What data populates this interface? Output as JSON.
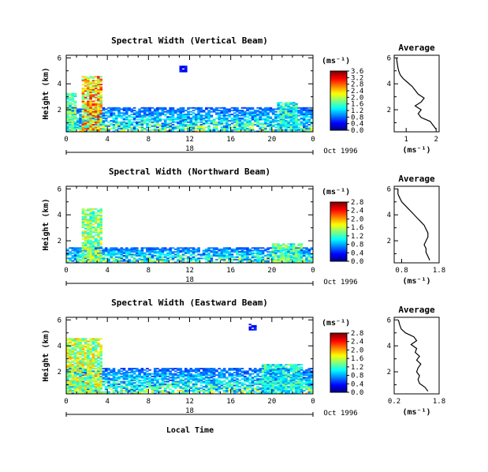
{
  "figure": {
    "xlabel": "Local Time",
    "date_label": "Oct 1996",
    "panel_ylabel": "Height (km)",
    "colorbar_unit": "(ms⁻¹)",
    "profile_title": "Average",
    "profile_xlabel": "(ms⁻¹)",
    "day_label": "18"
  },
  "chart_data": [
    {
      "type": "heatmap",
      "title": "Spectral Width (Vertical Beam)",
      "ylabel": "Height (km)",
      "xlabel": "",
      "x_ticks": [
        "0",
        "4",
        "8",
        "12",
        "16",
        "20",
        "0"
      ],
      "y_ticks": [
        "2",
        "4",
        "6"
      ],
      "xlim": [
        0,
        24
      ],
      "ylim": [
        0.3,
        6.2
      ],
      "colorbar": {
        "label": "(ms⁻¹)",
        "ticks": [
          "0.0",
          "0.4",
          "0.8",
          "1.2",
          "1.6",
          "2.0",
          "2.4",
          "2.8",
          "3.2",
          "3.6"
        ],
        "range": [
          0,
          3.6
        ]
      },
      "profile": {
        "title": "Average",
        "xlabel": "(ms⁻¹)",
        "x_ticks": [
          "1",
          "2"
        ],
        "xlim": [
          0.6,
          2.1
        ],
        "y_ticks": [
          "2",
          "4",
          "6"
        ],
        "ylim": [
          0.3,
          6.2
        ],
        "height": [
          0.5,
          0.8,
          1.1,
          1.4,
          1.7,
          2.0,
          2.3,
          2.6,
          2.9,
          3.2,
          3.5,
          3.8,
          4.1,
          4.4,
          4.7,
          5.0,
          5.3,
          5.6,
          6.0
        ],
        "value": [
          2.0,
          1.9,
          1.8,
          1.5,
          1.4,
          1.5,
          1.3,
          1.5,
          1.6,
          1.4,
          1.3,
          1.2,
          1.05,
          0.9,
          0.8,
          0.75,
          0.72,
          0.7,
          0.68
        ]
      },
      "field": {
        "background_top_km": 2.2,
        "events": [
          {
            "start_h": 1.5,
            "end_h": 3.5,
            "top_km": 4.6,
            "level": 2.6
          },
          {
            "start_h": 0.0,
            "end_h": 1.0,
            "top_km": 3.3,
            "level": 1.8
          },
          {
            "start_h": 11.0,
            "end_h": 11.7,
            "top_km": 5.3,
            "bottom_km": 4.9,
            "level": 0.5
          },
          {
            "start_h": 20.5,
            "end_h": 22.5,
            "top_km": 2.6,
            "level": 1.6
          }
        ]
      }
    },
    {
      "type": "heatmap",
      "title": "Spectral Width (Northward Beam)",
      "ylabel": "Height (km)",
      "xlabel": "",
      "x_ticks": [
        "0",
        "4",
        "8",
        "12",
        "16",
        "20",
        "0"
      ],
      "y_ticks": [
        "2",
        "4",
        "6"
      ],
      "xlim": [
        0,
        24
      ],
      "ylim": [
        0.3,
        6.2
      ],
      "colorbar": {
        "label": "(ms⁻¹)",
        "ticks": [
          "0.0",
          "0.4",
          "0.8",
          "1.2",
          "1.6",
          "2.0",
          "2.4",
          "2.8"
        ],
        "range": [
          0,
          2.8
        ]
      },
      "profile": {
        "title": "Average",
        "xlabel": "(ms⁻¹)",
        "x_ticks": [
          "0.8",
          "1.8"
        ],
        "xlim": [
          0.6,
          1.8
        ],
        "y_ticks": [
          "2",
          "4",
          "6"
        ],
        "ylim": [
          0.3,
          6.2
        ],
        "height": [
          0.5,
          0.8,
          1.1,
          1.4,
          1.7,
          2.0,
          2.3,
          2.6,
          2.9,
          3.2,
          3.5,
          3.8,
          4.1,
          4.4,
          4.7,
          5.0,
          5.3,
          5.6,
          6.0
        ],
        "value": [
          1.55,
          1.5,
          1.45,
          1.45,
          1.4,
          1.45,
          1.5,
          1.5,
          1.45,
          1.4,
          1.3,
          1.2,
          1.1,
          1.0,
          0.9,
          0.8,
          0.75,
          0.7,
          0.7
        ]
      },
      "field": {
        "background_top_km": 1.5,
        "events": [
          {
            "start_h": 1.5,
            "end_h": 3.5,
            "top_km": 4.5,
            "level": 1.6
          },
          {
            "start_h": 20.0,
            "end_h": 23.0,
            "top_km": 1.8,
            "level": 1.4
          }
        ]
      }
    },
    {
      "type": "heatmap",
      "title": "Spectral Width (Eastward Beam)",
      "ylabel": "Height (km)",
      "xlabel": "Local Time",
      "x_ticks": [
        "0",
        "4",
        "8",
        "12",
        "16",
        "20",
        "0"
      ],
      "y_ticks": [
        "2",
        "4",
        "6"
      ],
      "xlim": [
        0,
        24
      ],
      "ylim": [
        0.3,
        6.2
      ],
      "colorbar": {
        "label": "(ms⁻¹)",
        "ticks": [
          "0.0",
          "0.4",
          "0.8",
          "1.2",
          "1.6",
          "2.0",
          "2.4",
          "2.8"
        ],
        "range": [
          0,
          2.8
        ]
      },
      "profile": {
        "title": "Average",
        "xlabel": "(ms⁻¹)",
        "x_ticks": [
          "0.2",
          "1.8"
        ],
        "xlim": [
          0.2,
          1.8
        ],
        "y_ticks": [
          "2",
          "4",
          "6"
        ],
        "ylim": [
          0.3,
          6.2
        ],
        "height": [
          0.5,
          0.8,
          1.1,
          1.4,
          1.7,
          2.0,
          2.3,
          2.6,
          2.9,
          3.2,
          3.5,
          3.8,
          4.1,
          4.4,
          4.7,
          5.0,
          5.3,
          5.6,
          6.0
        ],
        "value": [
          1.4,
          1.3,
          1.1,
          1.05,
          1.1,
          1.0,
          1.05,
          1.15,
          1.0,
          1.1,
          0.95,
          1.0,
          0.8,
          1.0,
          0.9,
          0.6,
          0.45,
          0.4,
          0.35
        ]
      },
      "field": {
        "background_top_km": 2.3,
        "events": [
          {
            "start_h": 0.0,
            "end_h": 3.5,
            "top_km": 4.6,
            "level": 1.7
          },
          {
            "start_h": 17.7,
            "end_h": 18.3,
            "top_km": 5.6,
            "bottom_km": 5.2,
            "level": 0.4
          },
          {
            "start_h": 19.0,
            "end_h": 23.0,
            "top_km": 2.6,
            "level": 1.2
          }
        ]
      }
    }
  ]
}
